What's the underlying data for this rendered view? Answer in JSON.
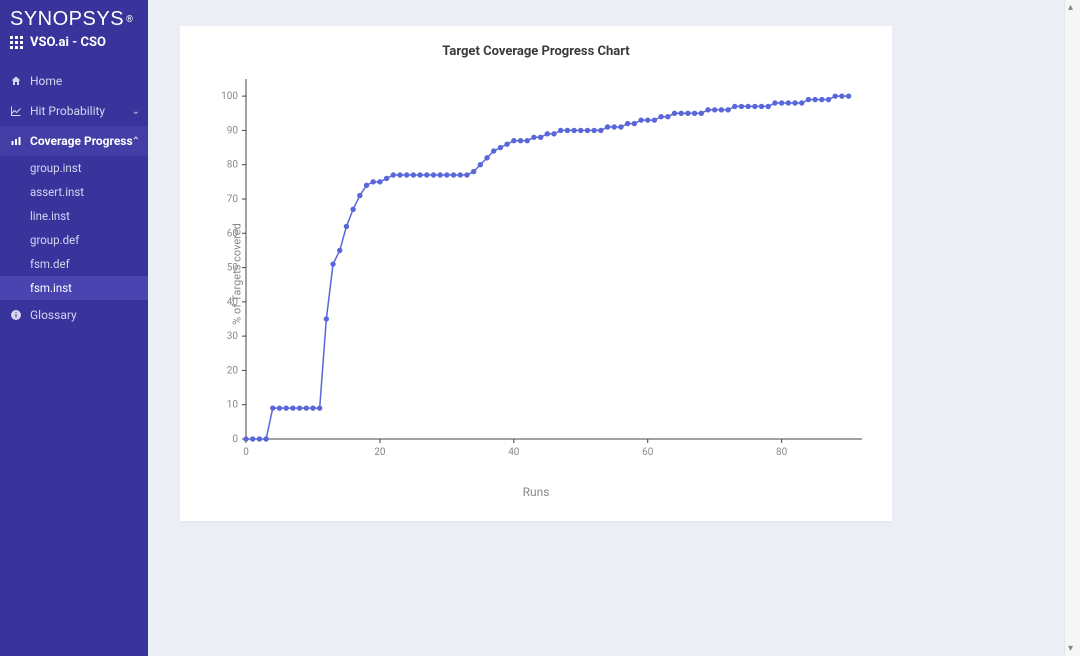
{
  "brand": {
    "name": "SYNOPSYS",
    "registered": "®",
    "subtitle": "VSO.ai - CSO"
  },
  "nav": {
    "home": "Home",
    "hit_probability": "Hit Probability",
    "coverage_progress": "Coverage Progress",
    "glossary": "Glossary",
    "coverage_items": [
      "group.inst",
      "assert.inst",
      "line.inst",
      "group.def",
      "fsm.def",
      "fsm.inst"
    ],
    "active_sub_index": 5
  },
  "chart": {
    "title": "Target Coverage Progress Chart",
    "type": "line",
    "xlabel": "Runs",
    "ylabel": "% of Targets covered",
    "xlim": [
      0,
      92
    ],
    "ylim": [
      0,
      105
    ],
    "xticks": [
      0,
      20,
      40,
      60,
      80
    ],
    "yticks": [
      0,
      10,
      20,
      30,
      40,
      50,
      60,
      70,
      80,
      90,
      100
    ],
    "line_color": "#5a67d8",
    "line_width": 1.6,
    "marker_style": "circle",
    "marker_size": 2.2,
    "background_color": "#ffffff",
    "axis_color": "#444444",
    "tick_font_size": 10,
    "label_font_size": 11,
    "title_font_size": 13,
    "data": {
      "x": [
        0,
        1,
        2,
        3,
        4,
        5,
        6,
        7,
        8,
        9,
        10,
        11,
        12,
        13,
        14,
        15,
        16,
        17,
        18,
        19,
        20,
        21,
        22,
        23,
        24,
        25,
        26,
        27,
        28,
        29,
        30,
        31,
        32,
        33,
        34,
        35,
        36,
        37,
        38,
        39,
        40,
        41,
        42,
        43,
        44,
        45,
        46,
        47,
        48,
        49,
        50,
        51,
        52,
        53,
        54,
        55,
        56,
        57,
        58,
        59,
        60,
        61,
        62,
        63,
        64,
        65,
        66,
        67,
        68,
        69,
        70,
        71,
        72,
        73,
        74,
        75,
        76,
        77,
        78,
        79,
        80,
        81,
        82,
        83,
        84,
        85,
        86,
        87,
        88,
        89,
        90
      ],
      "y": [
        0,
        0,
        0,
        0,
        9,
        9,
        9,
        9,
        9,
        9,
        9,
        9,
        35,
        51,
        55,
        62,
        67,
        71,
        74,
        75,
        75,
        76,
        77,
        77,
        77,
        77,
        77,
        77,
        77,
        77,
        77,
        77,
        77,
        77,
        78,
        80,
        82,
        84,
        85,
        86,
        87,
        87,
        87,
        88,
        88,
        89,
        89,
        90,
        90,
        90,
        90,
        90,
        90,
        90,
        91,
        91,
        91,
        92,
        92,
        93,
        93,
        93,
        94,
        94,
        95,
        95,
        95,
        95,
        95,
        96,
        96,
        96,
        96,
        97,
        97,
        97,
        97,
        97,
        97,
        98,
        98,
        98,
        98,
        98,
        99,
        99,
        99,
        99,
        100,
        100,
        100
      ]
    }
  }
}
